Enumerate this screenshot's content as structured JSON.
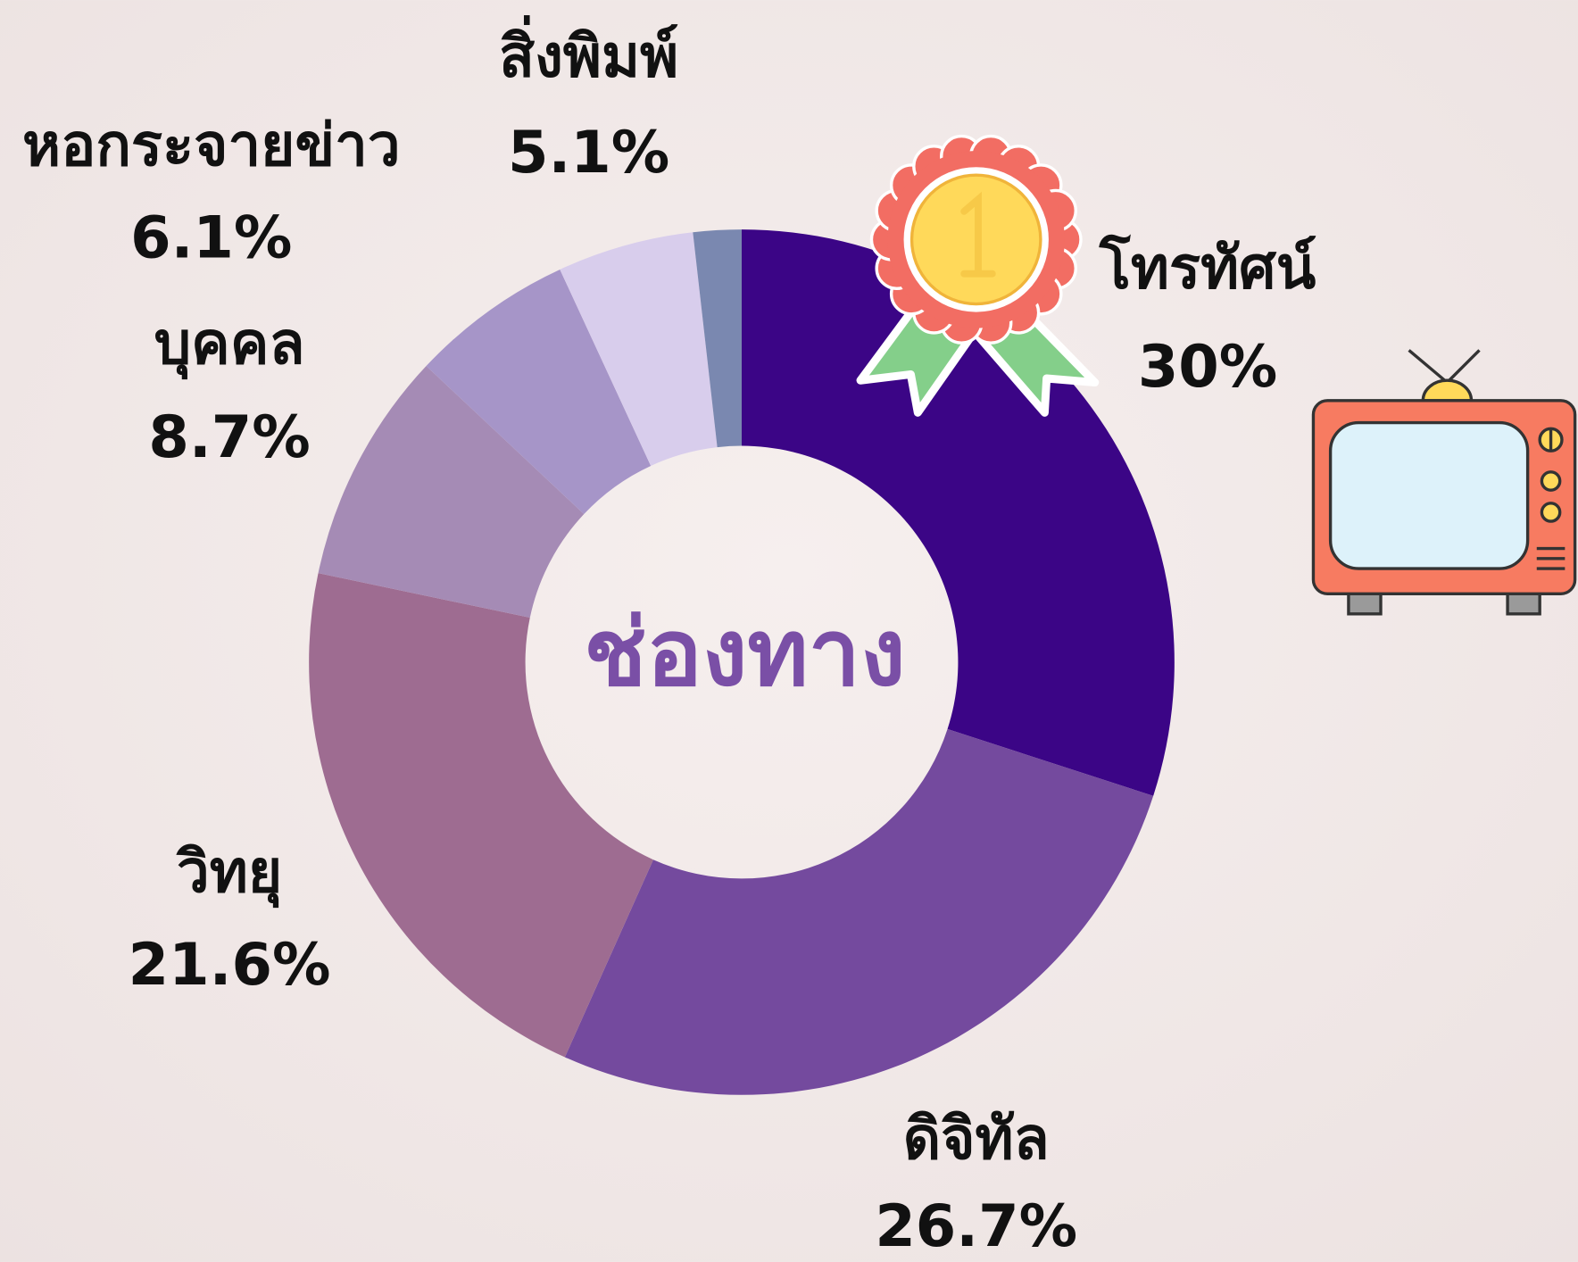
{
  "chart_data": {
    "type": "donut",
    "center_label": "ช่องทาง",
    "categories": [
      "โทรทัศน์",
      "ดิจิทัล",
      "วิทยุ",
      "บุคคล",
      "หอกระจายข่าว",
      "สิ่งพิมพ์",
      null
    ],
    "values": [
      30,
      26.7,
      21.6,
      8.7,
      6.1,
      5.1,
      1.8
    ],
    "value_labels": [
      "30%",
      "26.7%",
      "21.6%",
      "8.7%",
      "6.1%",
      "5.1%",
      null
    ],
    "colors": [
      "#3b0586",
      "#744a9e",
      "#9e6c91",
      "#a58bb5",
      "#a695c8",
      "#d8cdec",
      "#7a88b0"
    ]
  }
}
